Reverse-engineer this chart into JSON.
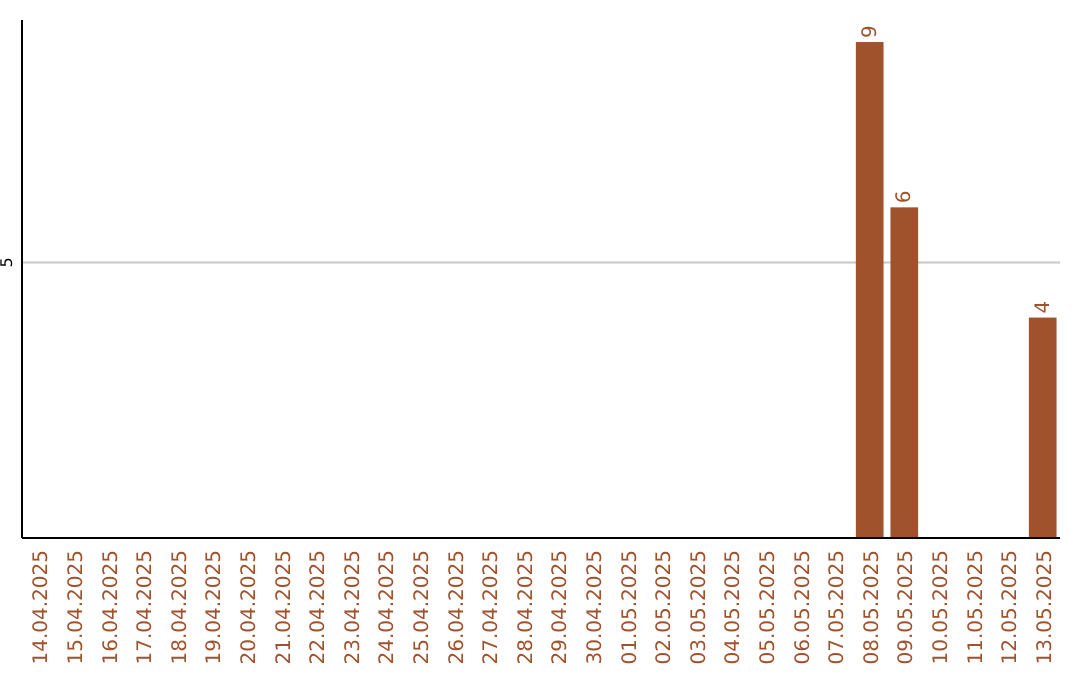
{
  "chart_data": {
    "type": "bar",
    "categories": [
      "14.04.2025",
      "15.04.2025",
      "16.04.2025",
      "17.04.2025",
      "18.04.2025",
      "19.04.2025",
      "20.04.2025",
      "21.04.2025",
      "22.04.2025",
      "23.04.2025",
      "24.04.2025",
      "25.04.2025",
      "26.04.2025",
      "27.04.2025",
      "28.04.2025",
      "29.04.2025",
      "30.04.2025",
      "01.05.2025",
      "02.05.2025",
      "03.05.2025",
      "04.05.2025",
      "05.05.2025",
      "06.05.2025",
      "07.05.2025",
      "08.05.2025",
      "09.05.2025",
      "10.05.2025",
      "11.05.2025",
      "12.05.2025",
      "13.05.2025"
    ],
    "values": [
      null,
      null,
      null,
      null,
      null,
      null,
      null,
      null,
      null,
      null,
      null,
      null,
      null,
      null,
      null,
      null,
      null,
      null,
      null,
      null,
      null,
      null,
      null,
      null,
      9,
      6,
      null,
      null,
      null,
      4
    ],
    "data_labels": true,
    "color": "#a0522d",
    "ylim": [
      0,
      9.4
    ],
    "yticks": [
      {
        "value": 0,
        "label": null
      },
      5
    ],
    "grid": "y"
  }
}
